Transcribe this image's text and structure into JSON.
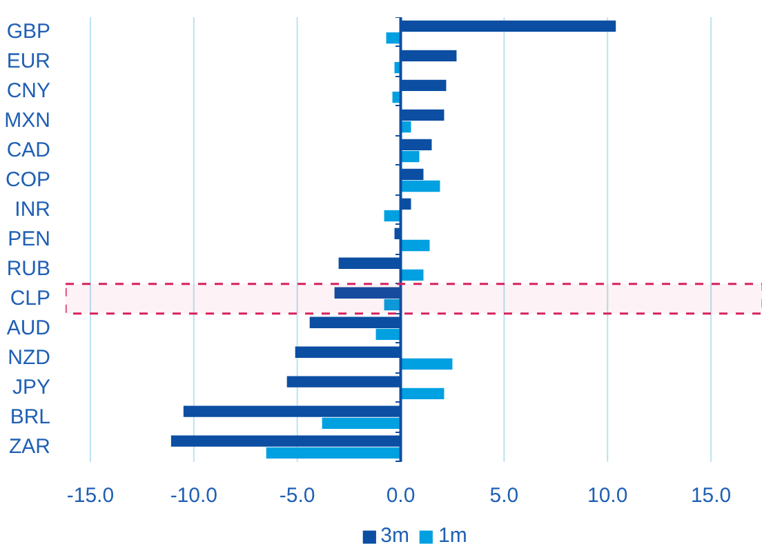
{
  "chart_data": {
    "type": "bar",
    "orientation": "horizontal",
    "categories": [
      "GBP",
      "EUR",
      "CNY",
      "MXN",
      "CAD",
      "COP",
      "INR",
      "PEN",
      "RUB",
      "CLP",
      "AUD",
      "NZD",
      "JPY",
      "BRL",
      "ZAR"
    ],
    "series": [
      {
        "name": "3m",
        "color": "#0b4ea2",
        "values": [
          10.4,
          2.7,
          2.2,
          2.1,
          1.5,
          1.1,
          0.5,
          -0.3,
          -3.0,
          -3.2,
          -4.4,
          -5.1,
          -5.5,
          -10.5,
          -11.1
        ]
      },
      {
        "name": "1m",
        "color": "#00a0e1",
        "values": [
          -0.7,
          -0.3,
          -0.4,
          0.5,
          0.9,
          1.9,
          -0.8,
          1.4,
          1.1,
          -0.8,
          -1.2,
          2.5,
          2.1,
          -3.8,
          -6.5
        ]
      }
    ],
    "xlim": [
      -16.2,
      17.5
    ],
    "xticks": [
      {
        "value": -15,
        "label": "-15.0"
      },
      {
        "value": -10,
        "label": "-10.0"
      },
      {
        "value": -5,
        "label": "-5.0"
      },
      {
        "value": 0,
        "label": "0.0"
      },
      {
        "value": 5,
        "label": "5.0"
      },
      {
        "value": 10,
        "label": "10.0"
      },
      {
        "value": 15,
        "label": "15.0"
      }
    ],
    "grid": "x",
    "legend": "bottom",
    "ref_lines": [
      {
        "axis": "x",
        "value": 0,
        "color": "#0b4ea2"
      }
    ],
    "bands": [
      {
        "axis": "y",
        "from": "CLP",
        "to": "CLP",
        "color": "#d6215b"
      }
    ]
  }
}
